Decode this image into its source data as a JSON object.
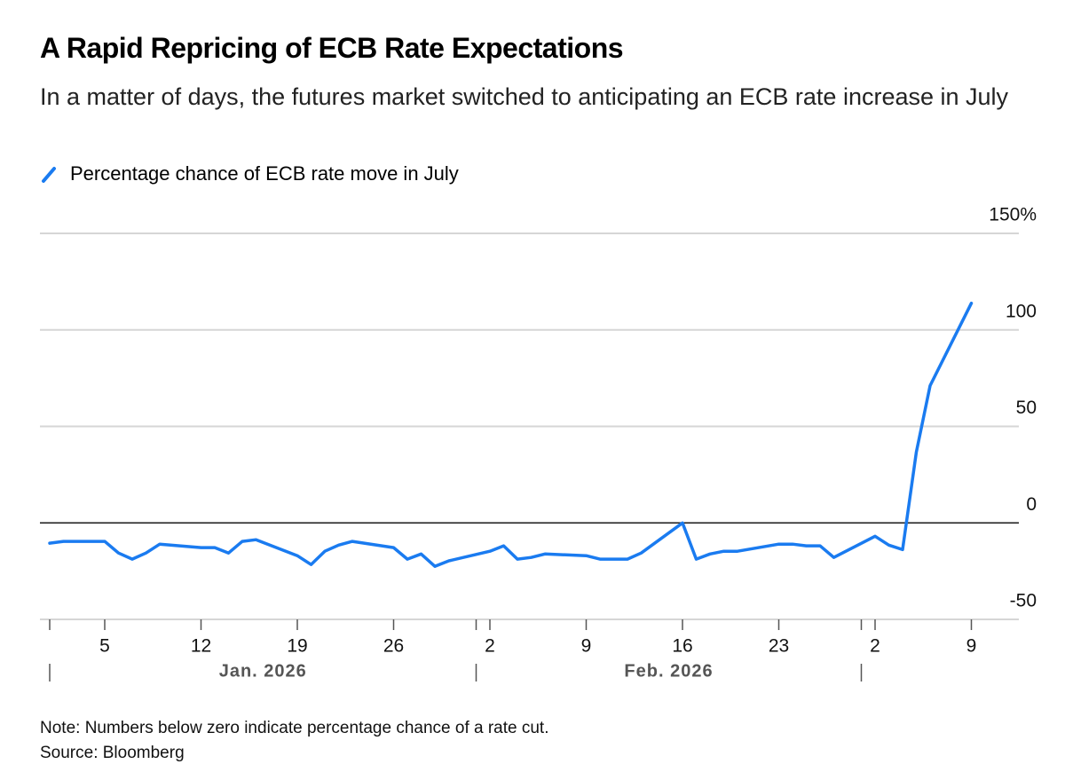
{
  "chart_data": {
    "type": "line",
    "title": "A Rapid Repricing of ECB Rate Expectations",
    "subtitle": "In a matter of days, the futures market switched to anticipating an ECB rate increase in July",
    "note": "Note: Numbers below zero indicate percentage chance of a rate cut.",
    "source": "Source: Bloomberg",
    "x": [
      "2026-01-01",
      "2026-01-02",
      "2026-01-05",
      "2026-01-06",
      "2026-01-07",
      "2026-01-08",
      "2026-01-09",
      "2026-01-12",
      "2026-01-13",
      "2026-01-14",
      "2026-01-15",
      "2026-01-16",
      "2026-01-19",
      "2026-01-20",
      "2026-01-21",
      "2026-01-22",
      "2026-01-23",
      "2026-01-26",
      "2026-01-27",
      "2026-01-28",
      "2026-01-29",
      "2026-01-30",
      "2026-02-02",
      "2026-02-03",
      "2026-02-04",
      "2026-02-05",
      "2026-02-06",
      "2026-02-09",
      "2026-02-10",
      "2026-02-11",
      "2026-02-12",
      "2026-02-13",
      "2026-02-16",
      "2026-02-17",
      "2026-02-18",
      "2026-02-19",
      "2026-02-20",
      "2026-02-23",
      "2026-02-24",
      "2026-02-25",
      "2026-02-26",
      "2026-02-27",
      "2026-03-02",
      "2026-03-03",
      "2026-03-04",
      "2026-03-05",
      "2026-03-06",
      "2026-03-09"
    ],
    "series": [
      {
        "name": "Percentage chance of ECB rate move in July",
        "color": "#1a7bf0",
        "values": [
          -10.5,
          -9.6,
          -9.6,
          -15.6,
          -18.8,
          -15.6,
          -11,
          -12.8,
          -12.8,
          -15.6,
          -9.6,
          -8.7,
          -17,
          -21.6,
          -14.7,
          -11.5,
          -9.6,
          -12.8,
          -18.8,
          -16.1,
          -22.5,
          -19.7,
          -14.7,
          -11.9,
          -18.8,
          -17.9,
          -16.1,
          -17,
          -18.8,
          -18.8,
          -18.8,
          -15.6,
          0,
          -18.8,
          -16.1,
          -14.7,
          -14.7,
          -11,
          -11,
          -11.9,
          -11.9,
          -17.9,
          -6.9,
          -11.5,
          -13.8,
          36.7,
          71.1,
          113.8
        ]
      }
    ],
    "xlim": [
      "2025-12-31",
      "2026-03-11"
    ],
    "xticks": [
      {
        "value": "2026-01-05",
        "label": "5"
      },
      {
        "value": "2026-01-12",
        "label": "12"
      },
      {
        "value": "2026-01-19",
        "label": "19"
      },
      {
        "value": "2026-01-26",
        "label": "26"
      },
      {
        "value": "2026-02-02",
        "label": "2"
      },
      {
        "value": "2026-02-09",
        "label": "9"
      },
      {
        "value": "2026-02-16",
        "label": "16"
      },
      {
        "value": "2026-02-23",
        "label": "23"
      },
      {
        "value": "2026-03-02",
        "label": "2"
      },
      {
        "value": "2026-03-09",
        "label": "9"
      }
    ],
    "x_groups": [
      {
        "label": "Jan. 2026",
        "start": "2026-01-01",
        "end": "2026-02-01"
      },
      {
        "label": "Feb. 2026",
        "start": "2026-02-01",
        "end": "2026-03-01"
      }
    ],
    "ylim": [
      -50,
      150
    ],
    "yticks": [
      -50,
      0,
      50,
      100,
      {
        "value": 150,
        "label": "150%"
      }
    ],
    "grid": true,
    "zero_line": true
  }
}
